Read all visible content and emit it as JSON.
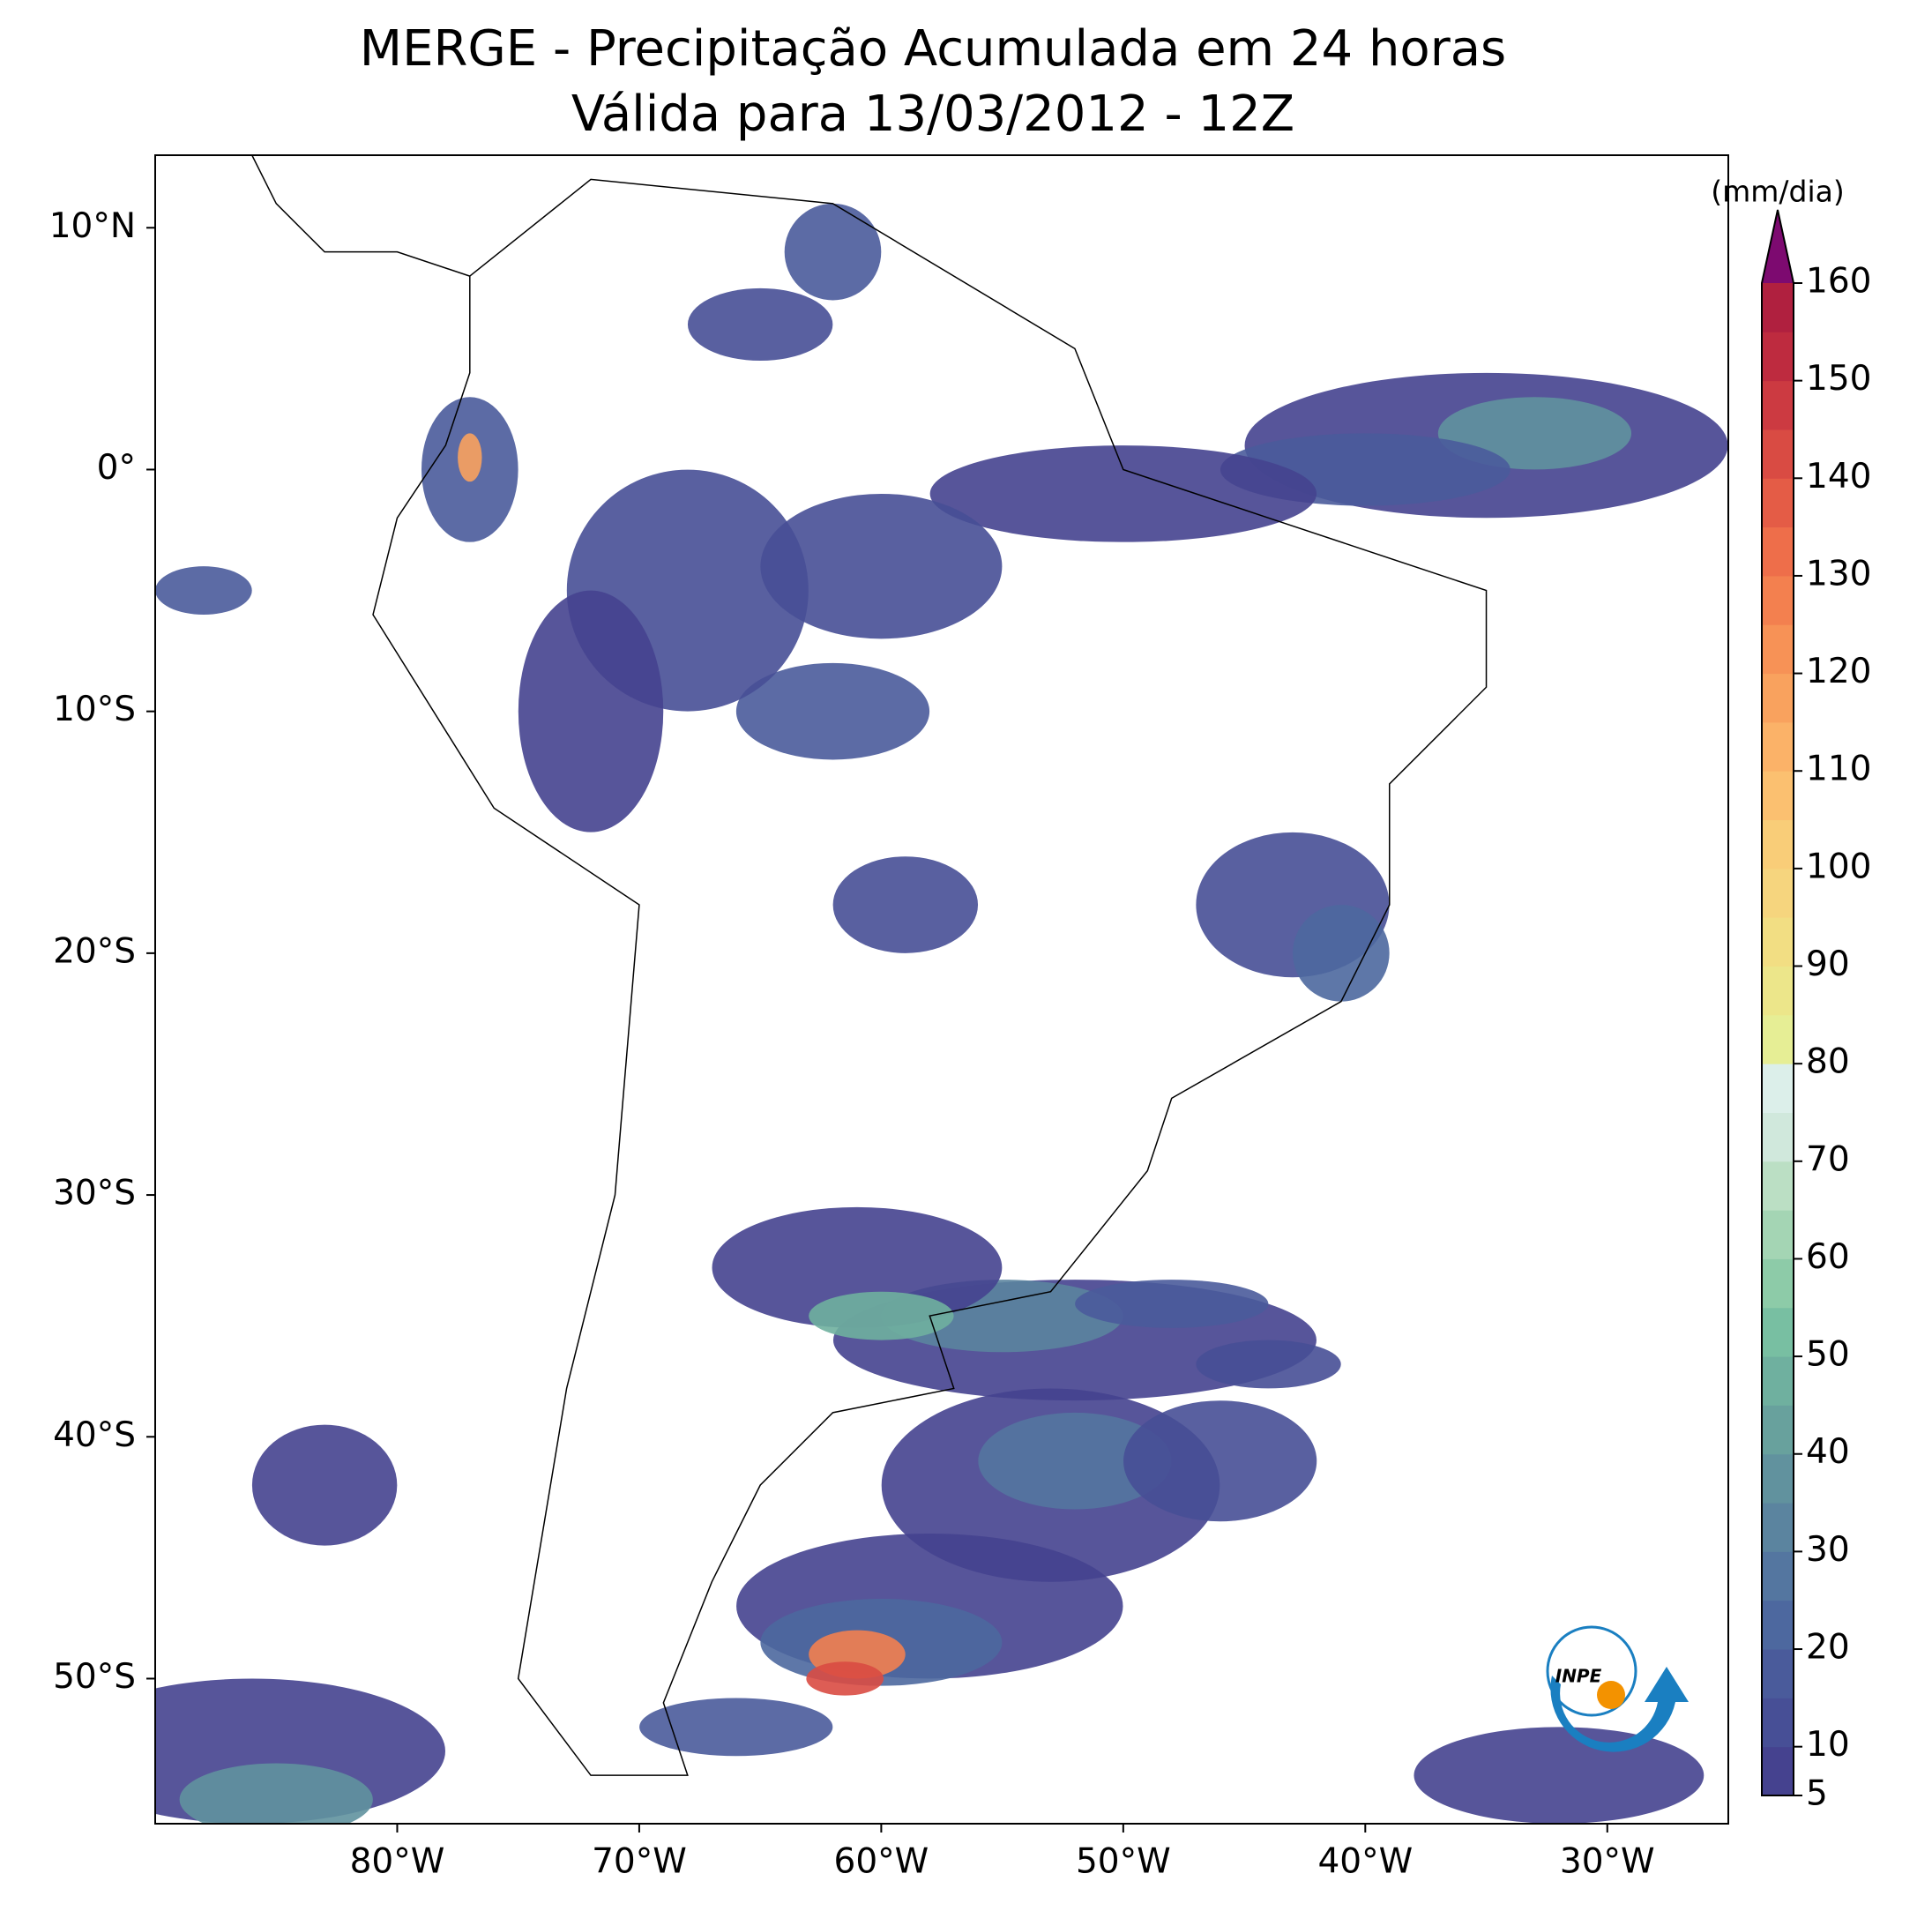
{
  "map": {
    "title": [
      "MERGE - Precipitação Acumulada em 24 horas",
      "Válida para 13/03/2012 - 12Z"
    ],
    "xlim": [
      -90,
      -25
    ],
    "ylim": [
      -56,
      13
    ],
    "xticks": [
      {
        "value": -80,
        "label": "80°W"
      },
      {
        "value": -70,
        "label": "70°W"
      },
      {
        "value": -60,
        "label": "60°W"
      },
      {
        "value": -50,
        "label": "50°W"
      },
      {
        "value": -40,
        "label": "40°W"
      },
      {
        "value": -30,
        "label": "30°W"
      }
    ],
    "yticks": [
      {
        "value": 10,
        "label": "10°N"
      },
      {
        "value": 0,
        "label": "0°"
      },
      {
        "value": -10,
        "label": "10°S"
      },
      {
        "value": -20,
        "label": "20°S"
      },
      {
        "value": -30,
        "label": "30°S"
      },
      {
        "value": -40,
        "label": "40°S"
      },
      {
        "value": -50,
        "label": "50°S"
      }
    ],
    "colorbar": {
      "label": "(mm/dia)",
      "lim": [
        5,
        160
      ],
      "ticks": [
        5,
        10,
        20,
        30,
        40,
        50,
        60,
        70,
        80,
        90,
        100,
        110,
        120,
        130,
        140,
        150,
        160
      ],
      "colors": [
        "#45428f",
        "#474f96",
        "#4a5b9b",
        "#4d689f",
        "#5476a0",
        "#5b849f",
        "#61929e",
        "#68a19d",
        "#6fb09f",
        "#78bfa2",
        "#8dcba8",
        "#a4d5b4",
        "#bbdfc4",
        "#d0e8dc",
        "#dcefea",
        "#e6ee95",
        "#ece68a",
        "#f2de83",
        "#f6d57e",
        "#f9cd78",
        "#fbc070",
        "#fbb268",
        "#f9a25e",
        "#f79256",
        "#f3804f",
        "#ee6e4a",
        "#e45c46",
        "#d94b43",
        "#cc3a41",
        "#be2b3f",
        "#b0203f"
      ],
      "extend_color": "#7d0a70"
    },
    "logo_text": "INPE"
  }
}
